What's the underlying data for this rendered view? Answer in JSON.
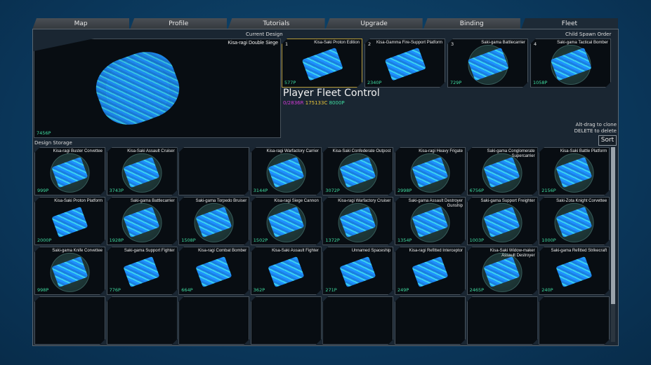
{
  "tabs": [
    "Map",
    "Profile",
    "Tutorials",
    "Upgrade",
    "Binding",
    "Fleet"
  ],
  "active_tab": "Fleet",
  "current_design": {
    "label": "Current Design",
    "name": "Kisa-ragi Double Siege",
    "cost": "7456P"
  },
  "child_spawn": {
    "label": "Child Spawn Order",
    "slots": [
      {
        "num": "1",
        "name": "Kisa-Saki Proton Edition",
        "cost": "577P"
      },
      {
        "num": "2",
        "name": "Kisa-Gamma Fire-Support Platform",
        "cost": "2340P"
      },
      {
        "num": "3",
        "name": "Saki-gama Battlecarrier",
        "cost": "729P"
      },
      {
        "num": "4",
        "name": "Saki-gama Tactical Bomber",
        "cost": "1058P"
      }
    ]
  },
  "fleet": {
    "title": "Player Fleet Control",
    "resources_r": "0/2836R",
    "resources_c": "175133C",
    "resources_p": "8000P",
    "colors": {
      "r": "#d23ad6",
      "c": "#e8c53a",
      "p": "#3fdca0"
    }
  },
  "hints": {
    "clone": "Alt-drag to clone",
    "delete": "DELETE to delete"
  },
  "sort_label": "Sort",
  "storage": {
    "label": "Design Storage",
    "items": [
      {
        "name": "Kisa-ragi Buster Corvettee",
        "cost": "999P",
        "shield": true
      },
      {
        "name": "Kisa-Saki Assault Cruiser",
        "cost": "3743P",
        "shield": true
      },
      {
        "name": "",
        "cost": "",
        "empty": true
      },
      {
        "name": "Kisa-ragi Warfactory Carrier",
        "cost": "3144P",
        "shield": true
      },
      {
        "name": "Kisa-Saki Confederate Outpost",
        "cost": "3072P",
        "shield": true
      },
      {
        "name": "Kisa-ragi Heavy Frigate",
        "cost": "2998P",
        "shield": true
      },
      {
        "name": "Saki-gama Conglomerate Supercarrier",
        "cost": "6756P",
        "shield": true
      },
      {
        "name": "Kisa-Saki Battle Platform",
        "cost": "2156P",
        "shield": true
      },
      {
        "name": "Kisa-Saki Proton Platform",
        "cost": "2000P",
        "shield": false
      },
      {
        "name": "Saki-gama Battlecarrier",
        "cost": "1928P",
        "shield": true
      },
      {
        "name": "Saki-gama Torpedo Bruiser",
        "cost": "1508P",
        "shield": true
      },
      {
        "name": "Kisa-ragi Siege Cannon",
        "cost": "1502P",
        "shield": true
      },
      {
        "name": "Kisa-ragi Warfactory Cruiser",
        "cost": "1372P",
        "shield": true
      },
      {
        "name": "Saki-gama Assault Destroyer Gunship",
        "cost": "1354P",
        "shield": true
      },
      {
        "name": "Saki-gama Support Freighter",
        "cost": "1003P",
        "shield": true
      },
      {
        "name": "Saki-Zota Knight Corvettee",
        "cost": "1000P",
        "shield": true
      },
      {
        "name": "Saki-gama Knife Corvettee",
        "cost": "998P",
        "shield": true
      },
      {
        "name": "Saki-gama Support Fighter",
        "cost": "776P",
        "shield": false
      },
      {
        "name": "Kisa-ragi Combat Bomber",
        "cost": "664P",
        "shield": false
      },
      {
        "name": "Kisa-Saki Assault Fighter",
        "cost": "362P",
        "shield": false
      },
      {
        "name": "Unnamed Spaceship",
        "cost": "271P",
        "shield": false
      },
      {
        "name": "Kisa-ragi Refitted Interceptor",
        "cost": "249P",
        "shield": false
      },
      {
        "name": "Kisa-Saki Widow-maker Assault Destroyer",
        "cost": "2465P",
        "shield": true
      },
      {
        "name": "Saki-gama Refitted Strikecraft",
        "cost": "240P",
        "shield": false
      },
      {
        "empty": true
      },
      {
        "empty": true
      },
      {
        "empty": true
      },
      {
        "empty": true
      },
      {
        "empty": true
      },
      {
        "empty": true
      },
      {
        "empty": true
      },
      {
        "empty": true
      }
    ]
  }
}
